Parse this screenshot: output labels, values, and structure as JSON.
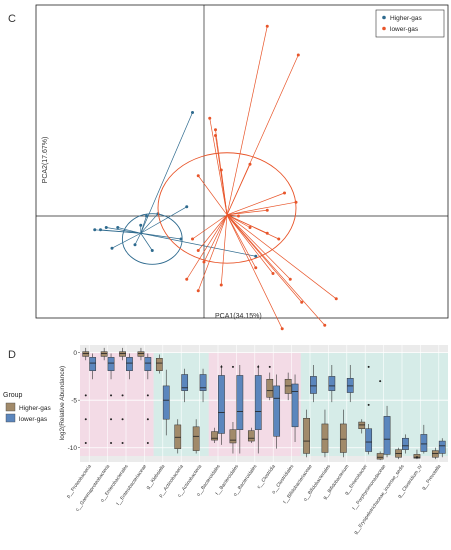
{
  "chart_data": [
    {
      "type": "scatter",
      "panel_label": "C",
      "xlabel": "PCA1(34.15%)",
      "ylabel": "PCA2(17.67%)",
      "legend_position": "top-right",
      "colors": {
        "Higher-gas": "#2e6a8e",
        "lower-gas": "#e8552a"
      },
      "centroids": {
        "Higher-gas": [
          -0.55,
          -0.15
        ],
        "lower-gas": [
          0.2,
          0.01
        ]
      },
      "ellipses": {
        "Higher-gas": {
          "cx": -0.45,
          "cy": -0.2,
          "rx": 0.26,
          "ry": 0.22
        },
        "lower-gas": {
          "cx": 0.2,
          "cy": 0.07,
          "rx": 0.6,
          "ry": 0.48
        }
      },
      "series": [
        {
          "name": "Higher-gas",
          "points": [
            [
              -0.1,
              0.9
            ],
            [
              -0.15,
              0.08
            ],
            [
              -0.4,
              0.02
            ],
            [
              -0.5,
              0.0
            ],
            [
              -0.55,
              -0.08
            ],
            [
              -0.75,
              -0.1
            ],
            [
              -0.85,
              -0.1
            ],
            [
              -0.9,
              -0.12
            ],
            [
              -0.95,
              -0.12
            ],
            [
              -0.6,
              -0.25
            ],
            [
              -0.8,
              -0.28
            ],
            [
              -0.45,
              -0.3
            ],
            [
              -0.2,
              -0.2
            ],
            [
              0.45,
              -0.35
            ]
          ]
        },
        {
          "name": "lower-gas",
          "points": [
            [
              0.55,
              1.65
            ],
            [
              0.82,
              1.4
            ],
            [
              0.05,
              0.85
            ],
            [
              0.1,
              0.75
            ],
            [
              0.1,
              0.7
            ],
            [
              -0.05,
              0.35
            ],
            [
              0.15,
              0.4
            ],
            [
              0.4,
              0.45
            ],
            [
              0.7,
              0.2
            ],
            [
              0.8,
              0.12
            ],
            [
              0.55,
              0.05
            ],
            [
              0.3,
              0.0
            ],
            [
              0.4,
              -0.1
            ],
            [
              0.55,
              -0.15
            ],
            [
              0.65,
              -0.2
            ],
            [
              -0.1,
              -0.2
            ],
            [
              -0.05,
              -0.3
            ],
            [
              0.0,
              -0.4
            ],
            [
              -0.15,
              -0.55
            ],
            [
              -0.05,
              -0.65
            ],
            [
              0.15,
              -0.6
            ],
            [
              0.45,
              -0.45
            ],
            [
              0.6,
              -0.5
            ],
            [
              0.75,
              -0.55
            ],
            [
              0.85,
              -0.75
            ],
            [
              1.15,
              -0.72
            ],
            [
              1.05,
              -0.95
            ],
            [
              0.68,
              -0.98
            ]
          ]
        }
      ]
    },
    {
      "type": "box",
      "panel_label": "D",
      "ylabel": "log2(Relative Abundance)",
      "yticks": [
        0,
        -5,
        -10
      ],
      "ylim": [
        -11.5,
        0.8
      ],
      "legend_title": "Group",
      "legend_position": "left",
      "groups": [
        {
          "name": "Higher-gas",
          "color": "#a18a6a"
        },
        {
          "name": "lower-gas",
          "color": "#5b86bd"
        }
      ],
      "categories": [
        "p__Proteobacteria",
        "c__Gammaproteobacteria",
        "o__Enterobacterales",
        "f__Enterobacteriaceae",
        "g__Klebsiella",
        "p__Actinobacteria",
        "c__Actinobacteria",
        "o__Bacteroidales",
        "f__Bacteroidales",
        "o__Bacteroidales",
        "c__Clostridia",
        "o__Clostridiales",
        "f__Bifidobacteriaceae",
        "o__Bifidobacteriales",
        "g__Bifidobacterium",
        "g__Enterobacter",
        "f__Porphyromonadaceae",
        "g__Erysipelotrichaceae_incertae_sedis",
        "g__Clostridium_IV",
        "g__Prevotella"
      ],
      "boxes": [
        {
          "hg": [
            -0.8,
            -0.4,
            -0.1,
            0.1,
            0.5
          ],
          "lg": [
            -2.8,
            -1.9,
            -1.1,
            -0.5,
            -0.1
          ]
        },
        {
          "hg": [
            -0.8,
            -0.4,
            -0.1,
            0.1,
            0.5
          ],
          "lg": [
            -2.8,
            -1.9,
            -1.1,
            -0.5,
            -0.1
          ]
        },
        {
          "hg": [
            -0.8,
            -0.4,
            -0.1,
            0.1,
            0.5
          ],
          "lg": [
            -2.8,
            -1.9,
            -1.1,
            -0.5,
            -0.1
          ]
        },
        {
          "hg": [
            -0.8,
            -0.4,
            -0.1,
            0.1,
            0.5
          ],
          "lg": [
            -2.8,
            -1.9,
            -1.1,
            -0.5,
            -0.1
          ]
        },
        {
          "hg": [
            -2.2,
            -1.9,
            -1.1,
            -0.6,
            -0.2
          ],
          "lg": [
            -8.7,
            -7.0,
            -5.0,
            -3.5,
            -1.8
          ]
        },
        {
          "hg": [
            -10.6,
            -10.1,
            -8.9,
            -7.6,
            -7.0
          ],
          "lg": [
            -5.2,
            -4.0,
            -3.7,
            -2.3,
            -1.7
          ]
        },
        {
          "hg": [
            -10.6,
            -10.3,
            -8.8,
            -7.8,
            -7.0
          ],
          "lg": [
            -5.2,
            -4.0,
            -3.7,
            -2.3,
            -1.7
          ]
        },
        {
          "hg": [
            -9.5,
            -9.2,
            -9.0,
            -8.3,
            -7.9
          ],
          "lg": [
            -9.7,
            -8.5,
            -6.3,
            -2.4,
            -1.3
          ]
        },
        {
          "hg": [
            -10.6,
            -9.5,
            -9.2,
            -8.1,
            -7.3
          ],
          "lg": [
            -10.6,
            -8.1,
            -6.2,
            -2.4,
            -1.3
          ]
        },
        {
          "hg": [
            -9.5,
            -9.3,
            -9.0,
            -8.2,
            -7.9
          ],
          "lg": [
            -10.6,
            -8.1,
            -6.2,
            -2.4,
            -1.3
          ]
        },
        {
          "hg": [
            -5.0,
            -4.7,
            -4.0,
            -2.8,
            -2.1
          ],
          "lg": [
            -10.1,
            -8.8,
            -4.8,
            -3.5,
            -2.3
          ]
        },
        {
          "hg": [
            -5.0,
            -4.3,
            -3.5,
            -2.8,
            -2.1
          ],
          "lg": [
            -9.4,
            -7.8,
            -4.1,
            -3.3,
            -2.3
          ]
        },
        {
          "hg": [
            -11.0,
            -10.6,
            -9.3,
            -6.9,
            -6.0
          ],
          "lg": [
            -5.2,
            -4.3,
            -3.5,
            -2.5,
            -1.3
          ]
        },
        {
          "hg": [
            -11.0,
            -10.5,
            -9.1,
            -7.5,
            -6.0
          ],
          "lg": [
            -5.2,
            -4.0,
            -3.5,
            -2.5,
            -1.3
          ]
        },
        {
          "hg": [
            -11.0,
            -10.5,
            -9.1,
            -7.5,
            -6.0
          ],
          "lg": [
            -5.2,
            -4.2,
            -3.5,
            -2.7,
            -1.3
          ]
        },
        {
          "hg": [
            -8.5,
            -8.0,
            -7.6,
            -7.3,
            -7.0
          ],
          "lg": [
            -10.7,
            -10.4,
            -9.4,
            -8.0,
            -7.5
          ]
        },
        {
          "hg": [
            -11.3,
            -11.2,
            -11.0,
            -10.6,
            -10.4
          ],
          "lg": [
            -11.0,
            -10.7,
            -9.1,
            -6.7,
            -5.6
          ]
        },
        {
          "hg": [
            -11.2,
            -11.0,
            -10.6,
            -10.2,
            -10.0
          ],
          "lg": [
            -10.6,
            -10.2,
            -9.8,
            -9.0,
            -8.6
          ]
        },
        {
          "hg": [
            -11.2,
            -11.1,
            -11.0,
            -10.7,
            -10.2
          ],
          "lg": [
            -10.6,
            -10.4,
            -9.6,
            -8.6,
            -7.6
          ]
        },
        {
          "hg": [
            -11.2,
            -11.0,
            -10.6,
            -10.3,
            -10.0
          ],
          "lg": [
            -11.0,
            -10.6,
            -9.8,
            -9.3,
            -9.0
          ]
        }
      ],
      "outliers": [
        {
          "category": 1,
          "values": [
            -4.5,
            -7.0,
            -9.5
          ]
        },
        {
          "category": 2,
          "values": [
            -4.5,
            -7.0,
            -9.5
          ]
        },
        {
          "category": 3,
          "values": [
            -4.5,
            -7.0,
            -9.5
          ]
        },
        {
          "category": 4,
          "values": [
            -4.5,
            -7.0,
            -9.5
          ]
        },
        {
          "category": 8,
          "values": [
            -1.5
          ]
        },
        {
          "category": 9,
          "values": [
            -1.5
          ]
        },
        {
          "category": 10,
          "values": [
            -1.5
          ]
        },
        {
          "category": 11,
          "values": [
            -1.5
          ]
        },
        {
          "category": 16,
          "values": [
            -1.5,
            -5.5
          ]
        },
        {
          "category": 17,
          "values": [
            -3.0
          ]
        },
        {
          "category": 19,
          "values": [
            -11.0,
            -11.0
          ]
        }
      ]
    }
  ]
}
